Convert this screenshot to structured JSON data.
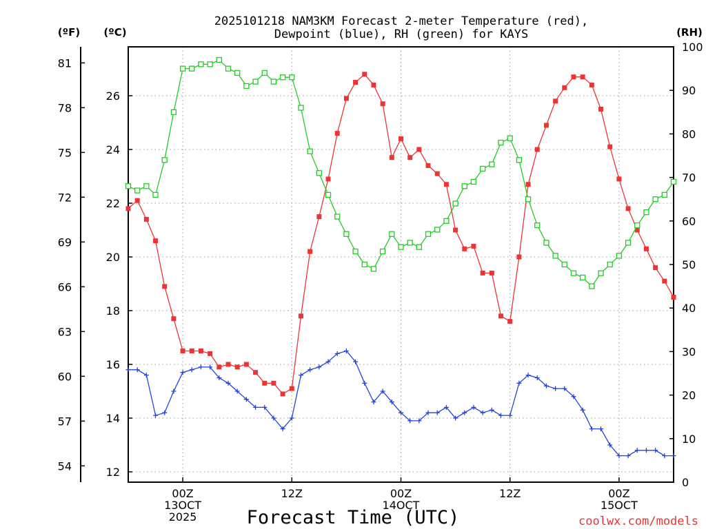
{
  "chart_data": {
    "type": "line",
    "title_line1": "2025101218 NAM3KM Forecast 2-meter Temperature (red),",
    "title_line2": "Dewpoint (blue), RH (green) for KAYS",
    "xlabel": "Forecast Time (UTC)",
    "watermark": "coolwx.com/models",
    "unit_labels": {
      "fahrenheit": "(ºF)",
      "celsius": "(ºC)",
      "rh": "(RH)"
    },
    "x_unit": "forecast hours from 2025-10-12 18Z",
    "xlim": [
      0,
      60
    ],
    "ylim_celsius": [
      11.6,
      27.8
    ],
    "ylim_rh": [
      0,
      100
    ],
    "x_ticks": [
      {
        "x": 6,
        "line1": "00Z",
        "line2": "13OCT",
        "line3": "2025"
      },
      {
        "x": 18,
        "line1": "12Z",
        "line2": "",
        "line3": ""
      },
      {
        "x": 30,
        "line1": "00Z",
        "line2": "14OCT",
        "line3": ""
      },
      {
        "x": 42,
        "line1": "12Z",
        "line2": "",
        "line3": ""
      },
      {
        "x": 54,
        "line1": "00Z",
        "line2": "15OCT",
        "line3": ""
      }
    ],
    "celsius_ticks": [
      12,
      14,
      16,
      18,
      20,
      22,
      24,
      26
    ],
    "celsius_tick_labels": [
      "12",
      "14",
      "16",
      "18",
      "20",
      "22",
      "24",
      "26"
    ],
    "fahrenheit_ticks": [
      54,
      57,
      60,
      63,
      66,
      69,
      72,
      75,
      78,
      81
    ],
    "fahrenheit_tick_labels": [
      "54",
      "57",
      "60",
      "63",
      "66",
      "69",
      "72",
      "75",
      "78",
      "81"
    ],
    "rh_ticks": [
      0,
      10,
      20,
      30,
      40,
      50,
      60,
      70,
      80,
      90,
      100
    ],
    "rh_tick_labels": [
      "0",
      "10",
      "20",
      "30",
      "40",
      "50",
      "60",
      "70",
      "80",
      "90",
      "100"
    ],
    "grid": true,
    "series": [
      {
        "name": "Temperature",
        "axis": "celsius",
        "color": "#ee3333",
        "marker": "filled-square",
        "values": [
          21.8,
          22.1,
          21.4,
          20.6,
          18.9,
          17.7,
          16.5,
          16.5,
          16.5,
          16.4,
          15.9,
          16.0,
          15.9,
          16.0,
          15.7,
          15.3,
          15.3,
          14.9,
          15.1,
          17.8,
          20.2,
          21.5,
          22.9,
          24.6,
          25.9,
          26.5,
          26.8,
          26.4,
          25.7,
          23.7,
          24.4,
          23.7,
          24.0,
          23.4,
          23.1,
          22.7,
          21.0,
          20.3,
          20.4,
          19.4,
          19.4,
          17.8,
          17.6,
          20.0,
          22.7,
          24.0,
          24.9,
          25.8,
          26.3,
          26.7,
          26.7,
          26.4,
          25.5,
          24.1,
          22.9,
          21.8,
          21.0,
          20.3,
          19.6,
          19.1,
          18.5
        ]
      },
      {
        "name": "Dewpoint",
        "axis": "celsius",
        "color": "#2244dd",
        "marker": "plus",
        "values": [
          15.8,
          15.8,
          15.6,
          14.1,
          14.2,
          15.0,
          15.7,
          15.8,
          15.9,
          15.9,
          15.5,
          15.3,
          15.0,
          14.7,
          14.4,
          14.4,
          14.0,
          13.6,
          14.0,
          15.6,
          15.8,
          15.9,
          16.1,
          16.4,
          16.5,
          16.1,
          15.3,
          14.6,
          15.0,
          14.6,
          14.2,
          13.9,
          13.9,
          14.2,
          14.2,
          14.4,
          14.0,
          14.2,
          14.4,
          14.2,
          14.3,
          14.1,
          14.1,
          15.3,
          15.6,
          15.5,
          15.2,
          15.1,
          15.1,
          14.8,
          14.3,
          13.6,
          13.6,
          13.0,
          12.6,
          12.6,
          12.8,
          12.8,
          12.8,
          12.6,
          12.6
        ]
      },
      {
        "name": "RH",
        "axis": "rh",
        "color": "#22cc22",
        "marker": "open-square",
        "values": [
          68,
          67,
          68,
          66,
          74,
          85,
          95,
          95,
          96,
          96,
          97,
          95,
          94,
          91,
          92,
          94,
          92,
          93,
          93,
          86,
          76,
          71,
          66,
          61,
          57,
          53,
          50,
          49,
          53,
          57,
          54,
          55,
          54,
          57,
          58,
          60,
          64,
          68,
          69,
          72,
          73,
          78,
          79,
          74,
          65,
          59,
          55,
          52,
          50,
          48,
          47,
          45,
          48,
          50,
          52,
          55,
          59,
          62,
          65,
          66,
          69
        ]
      }
    ]
  }
}
